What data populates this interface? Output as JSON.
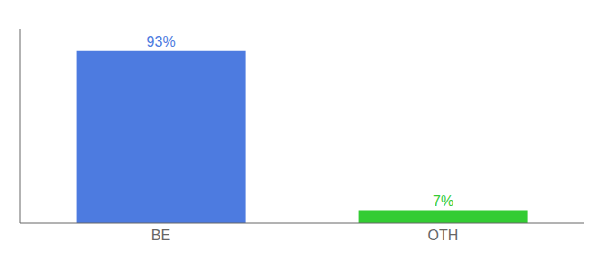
{
  "chart_data": {
    "type": "bar",
    "categories": [
      "BE",
      "OTH"
    ],
    "values": [
      93,
      7
    ],
    "value_labels": [
      "93%",
      "7%"
    ],
    "colors": [
      "#4d7be0",
      "#33cc33"
    ],
    "ylim": [
      0,
      105
    ],
    "data_labels": true,
    "tick_labels": "x",
    "grid": false
  }
}
